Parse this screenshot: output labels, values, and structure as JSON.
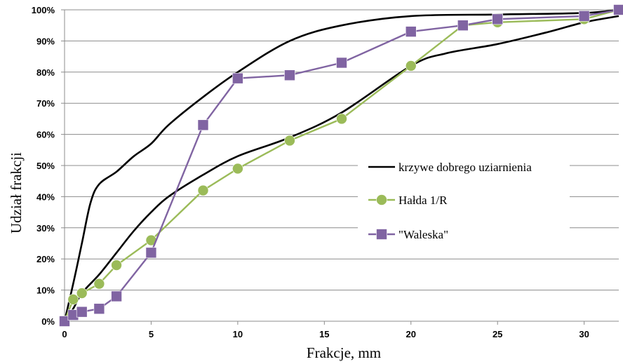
{
  "chart_data": {
    "type": "line",
    "xlabel": "Frakcje, mm",
    "ylabel": "Udział frakcji",
    "xlim": [
      0,
      32
    ],
    "ylim": [
      0,
      100
    ],
    "x_ticks": [
      "0",
      "5",
      "10",
      "15",
      "20",
      "25",
      "30"
    ],
    "y_ticks": [
      "0%",
      "10%",
      "20%",
      "30%",
      "40%",
      "50%",
      "60%",
      "70%",
      "80%",
      "90%",
      "100%"
    ],
    "grid": "horizontal",
    "legend_position": "center-right",
    "series": [
      {
        "name": "krzywe dobrego uziarnienia",
        "color": "#000000",
        "marker": "none",
        "curves": [
          {
            "x": [
              0,
              0.5,
              1,
              1.5,
              2,
              3,
              4,
              5,
              6,
              8,
              10,
              13,
              16,
              20,
              25,
              30,
              32
            ],
            "y": [
              0,
              12,
              25,
              38,
              44,
              48,
              53,
              57,
              63,
              72,
              80,
              90,
              95,
              98,
              98.5,
              99,
              100
            ]
          },
          {
            "x": [
              0,
              0.5,
              1,
              2,
              3,
              4,
              5,
              6,
              8,
              10,
              13,
              16,
              20,
              22,
              25,
              28,
              30,
              32
            ],
            "y": [
              0,
              4,
              9,
              15,
              22,
              29,
              35,
              40,
              47,
              53,
              59,
              67,
              82,
              86,
              89,
              93,
              96,
              98
            ]
          }
        ]
      },
      {
        "name": "Hałda 1/R",
        "color": "#9bbb59",
        "marker": "circle",
        "x": [
          0,
          0.5,
          1,
          2,
          3,
          5,
          8,
          10,
          13,
          16,
          20,
          23,
          25,
          30,
          32
        ],
        "y": [
          0,
          7,
          9,
          12,
          18,
          26,
          42,
          49,
          58,
          65,
          82,
          95,
          96,
          97,
          100
        ]
      },
      {
        "name": "\"Waleska\"",
        "color": "#8064a2",
        "marker": "square",
        "x": [
          0,
          0.5,
          1,
          2,
          3,
          5,
          8,
          10,
          13,
          16,
          20,
          23,
          25,
          30,
          32
        ],
        "y": [
          0,
          2,
          3,
          4,
          8,
          22,
          63,
          78,
          79,
          83,
          93,
          95,
          97,
          98,
          100
        ]
      }
    ]
  }
}
